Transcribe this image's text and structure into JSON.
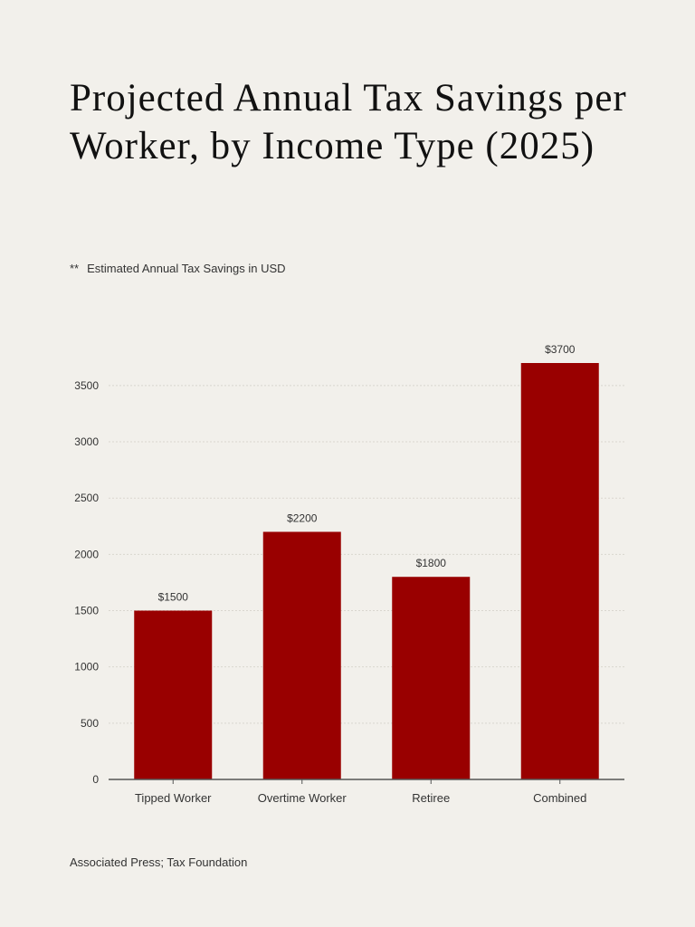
{
  "title": "Projected Annual Tax Savings per Worker, by Income Type (2025)",
  "subtitle": {
    "mark": "**",
    "text": "Estimated Annual Tax Savings in USD"
  },
  "source": "Associated Press; Tax Foundation",
  "colors": {
    "bar": "#990000",
    "grid": "#d9d6cf",
    "axis": "#555555",
    "text": "#333333",
    "background": "#f2f0eb"
  },
  "chart_data": {
    "type": "bar",
    "categories": [
      "Tipped Worker",
      "Overtime Worker",
      "Retiree",
      "Combined"
    ],
    "values": [
      1500,
      2200,
      1800,
      3700
    ],
    "value_labels": [
      "$1500",
      "$2200",
      "$1800",
      "$3700"
    ],
    "yticks": [
      0,
      500,
      1000,
      1500,
      2000,
      2500,
      3000,
      3500
    ],
    "ylim": [
      0,
      3700
    ],
    "grid": true,
    "xlabel": "",
    "ylabel": ""
  }
}
